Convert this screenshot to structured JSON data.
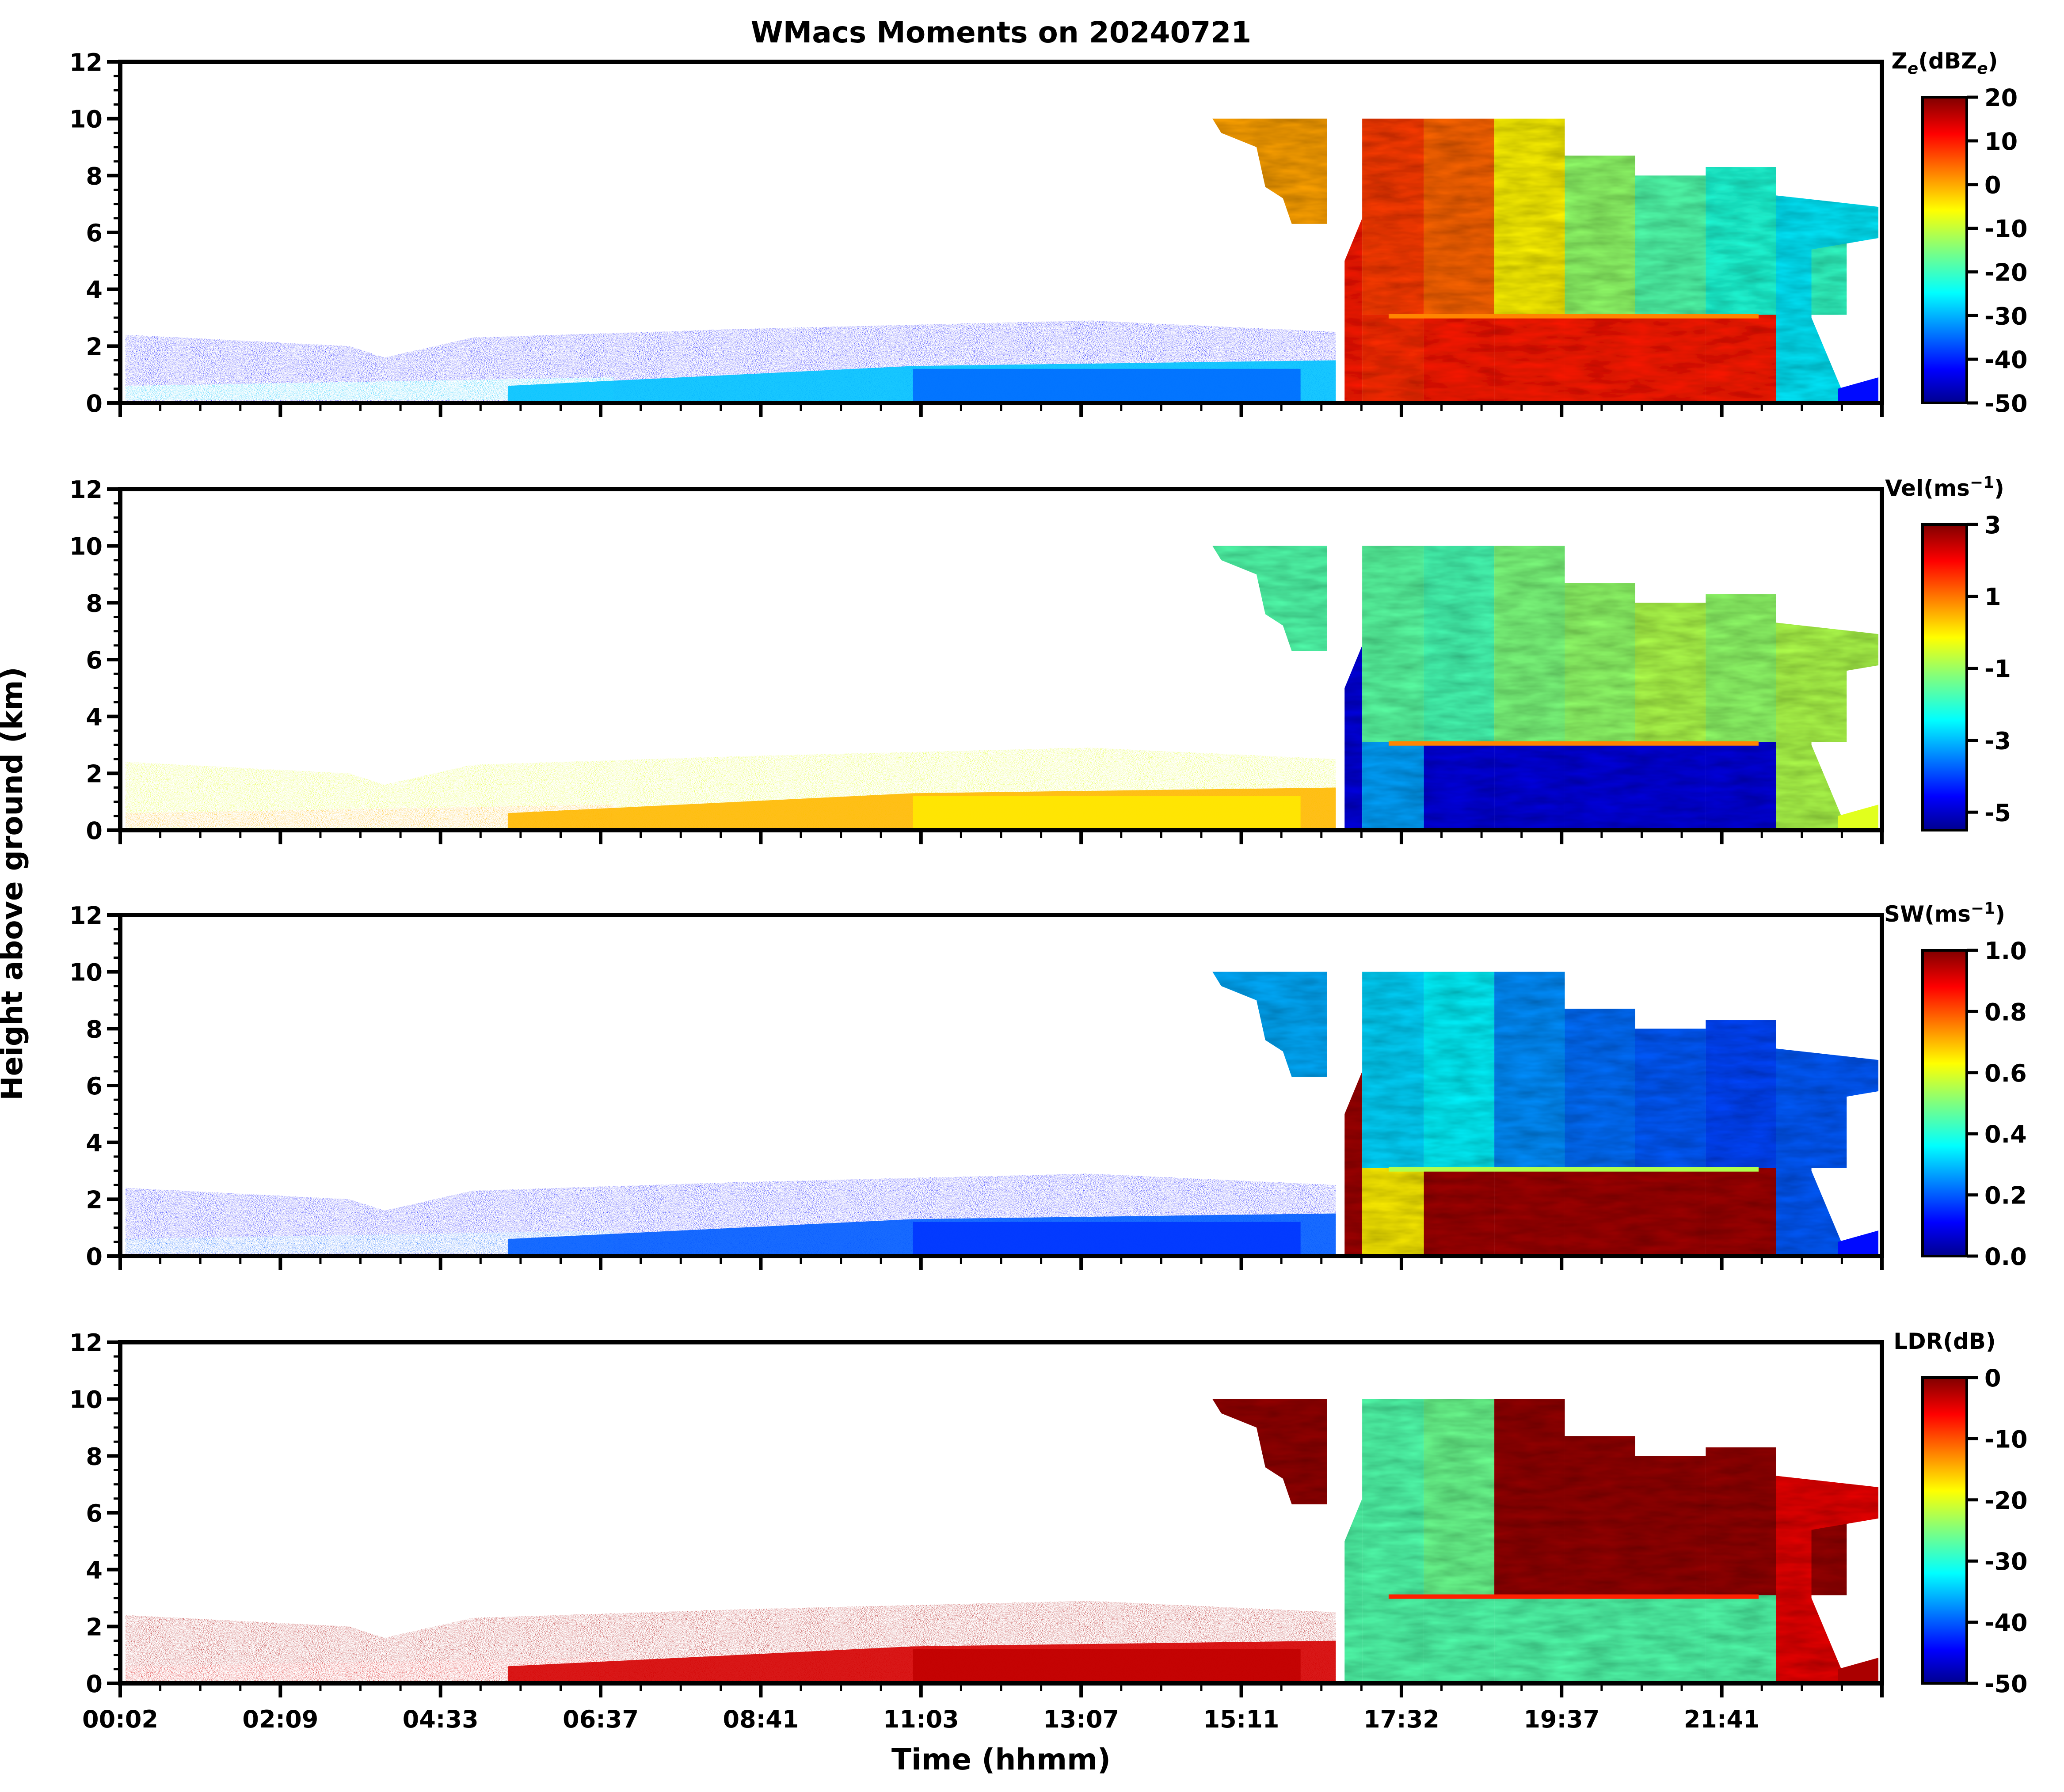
{
  "title": "WMacs Moments on 20240721",
  "xlabel": "Time (hhmm)",
  "ylabel": "Height above ground (km)",
  "chart_data": {
    "type": "heatmap",
    "date": "20240721",
    "x_tick_labels": [
      "00:02",
      "02:09",
      "04:33",
      "06:37",
      "08:41",
      "11:03",
      "13:07",
      "15:11",
      "17:32",
      "19:37",
      "21:41"
    ],
    "y_ticks": [
      0,
      2,
      4,
      6,
      8,
      10,
      12
    ],
    "ylim": [
      0,
      12
    ],
    "panels": [
      {
        "name": "reflectivity",
        "colorbar_label": "Ze(dBZe)",
        "label_main": "Z",
        "label_sub1": "e",
        "label_mid": "(dBZ",
        "label_sub2": "e",
        "label_end": ")",
        "vmin": -50,
        "vmax": 20,
        "ticks": [
          "20",
          "10",
          "0",
          "-10",
          "-20",
          "-30",
          "-40",
          "-50"
        ],
        "tick_values": [
          20,
          10,
          0,
          -10,
          -20,
          -30,
          -40,
          -50
        ]
      },
      {
        "name": "velocity",
        "colorbar_label": "Vel(ms-1)",
        "label_main": "Vel(ms",
        "label_sup": "−1",
        "label_end": ")",
        "vmin": -5.5,
        "vmax": 3,
        "ticks": [
          "3",
          "1",
          "-1",
          "-3",
          "-5"
        ],
        "tick_values": [
          3,
          1,
          -1,
          -3,
          -5
        ]
      },
      {
        "name": "spectrum_width",
        "colorbar_label": "SW(ms-1)",
        "label_main": "SW(ms",
        "label_sup": "−1",
        "label_end": ")",
        "vmin": 0,
        "vmax": 1,
        "ticks": [
          "1.0",
          "0.8",
          "0.6",
          "0.4",
          "0.2",
          "0.0"
        ],
        "tick_values": [
          1.0,
          0.8,
          0.6,
          0.4,
          0.2,
          0.0
        ]
      },
      {
        "name": "ldr",
        "colorbar_label": "LDR(dB)",
        "label_main": "LDR(dB)",
        "vmin": -50,
        "vmax": 0,
        "ticks": [
          "0",
          "-10",
          "-20",
          "-30",
          "-40",
          "-50"
        ],
        "tick_values": [
          0,
          -10,
          -20,
          -30,
          -40,
          -50
        ]
      }
    ],
    "colormap": "jet"
  }
}
